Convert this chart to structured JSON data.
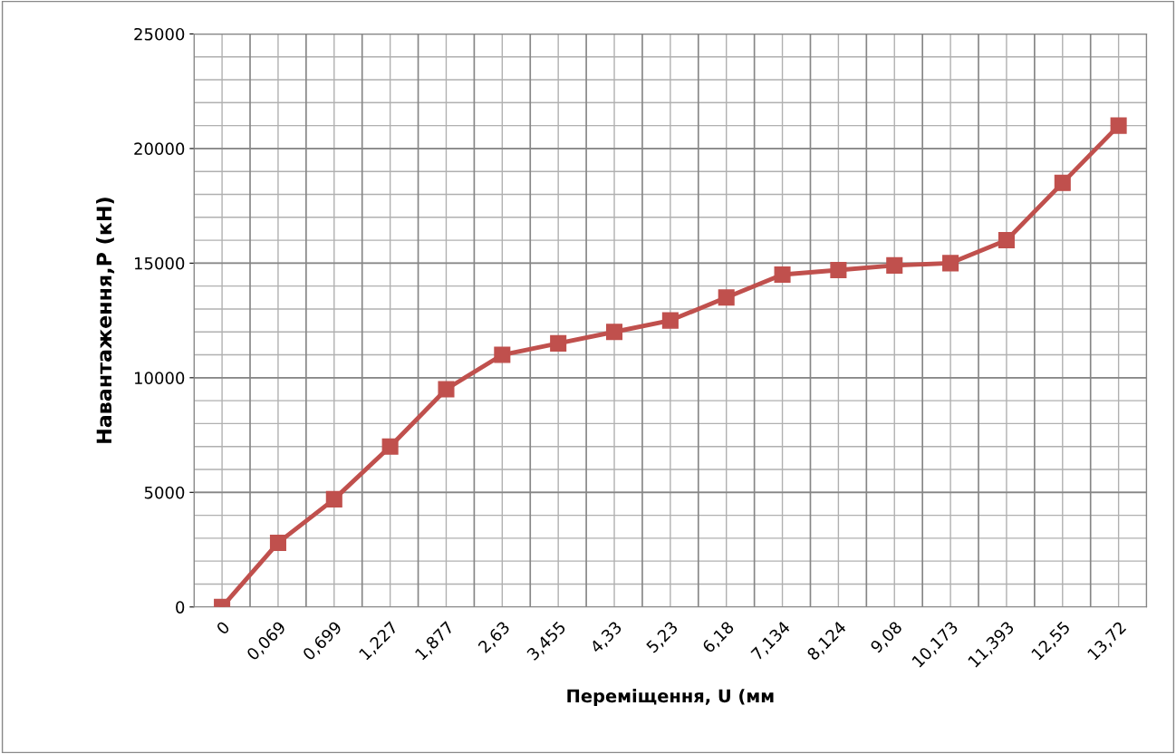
{
  "chart_data": {
    "type": "line",
    "xlabel": "Переміщення, U (мм",
    "ylabel": "Навантаження,P (кН)",
    "categories": [
      "0",
      "0,069",
      "0,699",
      "1,227",
      "1,877",
      "2,63",
      "3,455",
      "4,33",
      "5,23",
      "6,18",
      "7,134",
      "8,124",
      "9,08",
      "10,173",
      "11,393",
      "12,55",
      "13,72"
    ],
    "series": [
      {
        "color": "#c0504d",
        "values": [
          0,
          2800,
          4700,
          7000,
          9500,
          11000,
          11500,
          12000,
          12500,
          13500,
          14500,
          14700,
          14900,
          15000,
          16000,
          18500,
          21000
        ]
      }
    ],
    "ylim": [
      0,
      25000
    ],
    "yticks": [
      0,
      5000,
      10000,
      15000,
      20000,
      25000
    ],
    "grid": true,
    "marker": "square",
    "line_style": "solid"
  }
}
